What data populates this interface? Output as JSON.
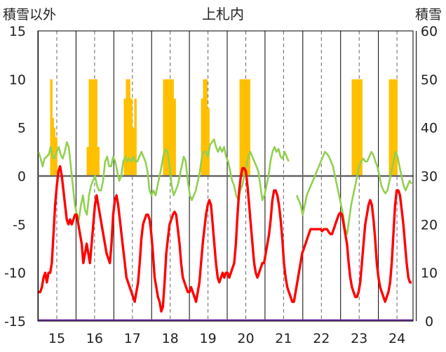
{
  "chart_data": {
    "type": "line",
    "title": "上札内",
    "ylabel_left": "積雪以外",
    "ylabel_right": "積雪",
    "ylim_left": [
      -15,
      15
    ],
    "ylim_right": [
      0,
      60
    ],
    "left_ticks": [
      "15",
      "10",
      "5",
      "0",
      "-5",
      "-10",
      "-15"
    ],
    "right_ticks": [
      "60",
      "50",
      "40",
      "30",
      "20",
      "10",
      "0"
    ],
    "x_labels": [
      "15",
      "16",
      "17",
      "18",
      "19",
      "20",
      "21",
      "22",
      "23",
      "24"
    ],
    "colors": {
      "temperature": "#ff0000",
      "secondary": "#92d050",
      "snow": "#ffc000",
      "baseline": "#7030a0",
      "zero": "#666666"
    },
    "series": [
      {
        "key": "temperature",
        "values": [
          -12,
          -12,
          -11.5,
          -10.5,
          -10,
          -11,
          -10,
          -10,
          -9,
          -6,
          -3,
          -1,
          0.5,
          1,
          0,
          -1.5,
          -3,
          -4.5,
          -5,
          -4.5,
          -5,
          -4.5,
          -4,
          -4,
          -5,
          -6,
          -7,
          -9,
          -8,
          -7,
          -8,
          -9,
          -7,
          -5,
          -3,
          -2,
          -3,
          -4,
          -5,
          -6,
          -7,
          -8,
          -8.5,
          -9,
          -7,
          -4,
          -2.5,
          -2,
          -3,
          -4.5,
          -6,
          -7.5,
          -9,
          -10.5,
          -11,
          -11.5,
          -12,
          -12.5,
          -13,
          -12,
          -11,
          -9,
          -6.5,
          -5,
          -4.5,
          -4,
          -4,
          -4.5,
          -6,
          -8,
          -10.5,
          -11.5,
          -12.5,
          -13,
          -14,
          -13.5,
          -11,
          -8,
          -6.5,
          -5,
          -4.5,
          -4,
          -3.7,
          -4,
          -5.5,
          -7,
          -9,
          -10.5,
          -11,
          -11.5,
          -12,
          -12,
          -11.5,
          -12,
          -12.5,
          -13,
          -12,
          -11,
          -9,
          -7,
          -5.5,
          -4,
          -3,
          -2.5,
          -3,
          -5,
          -7,
          -9,
          -10.5,
          -11,
          -10.5,
          -10,
          -10.5,
          -10,
          -10,
          -10.5,
          -10,
          -9.5,
          -9,
          -7,
          -4,
          -1.5,
          0,
          0.8,
          0.8,
          0.5,
          -1,
          -3,
          -5,
          -7,
          -9,
          -10,
          -10.5,
          -10,
          -9.5,
          -9,
          -9,
          -8,
          -7,
          -6,
          -4.5,
          -2.5,
          -1.5,
          -1.5,
          -2,
          -3,
          -4.5,
          -6.5,
          -9,
          -10.5,
          -11.5,
          -12,
          -12.5,
          -13,
          -13,
          -12,
          -11,
          -10,
          -9,
          -8,
          -7.5,
          -7,
          -6.5,
          -6,
          -5.5,
          -5.5,
          -5.5,
          -5.5,
          -5.5,
          -5.5,
          -5.5,
          -5.7,
          -5.5,
          -5.5,
          -5.5,
          -5.8,
          -6,
          -6,
          -5.5,
          -5,
          -4.5,
          -4,
          -3.8,
          -4,
          -5,
          -6,
          -7,
          -9,
          -10.5,
          -11.5,
          -12,
          -12.5,
          -12.5,
          -12,
          -11,
          -9,
          -7,
          -5,
          -4,
          -3,
          -2.5,
          -3,
          -4.5,
          -6.5,
          -9,
          -10.5,
          -11.5,
          -12,
          -12.5,
          -13,
          -12.5,
          -12,
          -11,
          -9,
          -6,
          -3,
          -1.5,
          -1.5,
          -2,
          -3.5,
          -5,
          -7,
          -9,
          -10.5,
          -11,
          -11
        ]
      },
      {
        "key": "secondary",
        "values": [
          2.5,
          1.8,
          1,
          1.8,
          2,
          2.2,
          3,
          2,
          1.8,
          2.5,
          3,
          2.2,
          1.8,
          2.5,
          3.5,
          3,
          1,
          -1,
          -3,
          -4,
          -4.5,
          -3,
          -2,
          -3.5,
          -4,
          -2,
          -1,
          -0.5,
          0,
          -1,
          -1.5,
          -1.5,
          -0.5,
          1.5,
          2,
          1,
          1,
          2,
          1.5,
          0.5,
          -0.5,
          0,
          1.5,
          2,
          1.5,
          1.8,
          1.5,
          2,
          1.5,
          1.5,
          2,
          2.5,
          2,
          1.5,
          0.5,
          -1.5,
          -2,
          -1.5,
          -2,
          -1,
          0,
          1,
          2.2,
          2.8,
          2.5,
          1,
          -1,
          -2,
          -1.5,
          -1,
          0,
          1,
          2,
          1.5,
          -0.5,
          -2,
          -2.5,
          -2,
          -1.5,
          -0.5,
          0.5,
          2,
          2.5,
          2.5,
          2,
          3.2,
          3.5,
          3.8,
          3,
          2.5,
          3,
          2.5,
          3,
          2,
          1.5,
          0.5,
          -0.5,
          -1,
          -2,
          -2.5,
          -1.5,
          -1,
          0,
          1,
          2,
          2.5,
          2,
          1.5,
          1,
          0.5,
          -1,
          -2.5,
          -2,
          -1,
          0,
          1.5,
          2.5,
          3,
          2.5,
          2.8,
          2,
          1.8,
          2.5,
          2,
          1.5,
          0.5,
          -0.5,
          -1,
          -2,
          -2.5,
          -3,
          -4,
          -3,
          -2,
          -1.5,
          -1,
          -0.5,
          0,
          0.5,
          1,
          1.5,
          2,
          2.5,
          2.3,
          2,
          1.5,
          1,
          0,
          -1,
          -2,
          -3,
          -4,
          -5.5,
          -6,
          -4.5,
          -3,
          -2,
          -1,
          0,
          1,
          1.5,
          1.8,
          1.5,
          1.5,
          2,
          2.5,
          2.2,
          1.5,
          1,
          0,
          -1,
          -1.5,
          -1.8,
          -1.5,
          -0.5,
          0.5,
          1.5,
          2.5,
          2,
          1,
          0,
          -1,
          -1.5,
          -1,
          -0.5,
          -0.8
        ],
        "gaps": "series breaks mid-chart at day 21 and resumes near day 22"
      }
    ],
    "snow_columns_note": "orange columns drawn against right axis 積雪 (0–60)"
  }
}
